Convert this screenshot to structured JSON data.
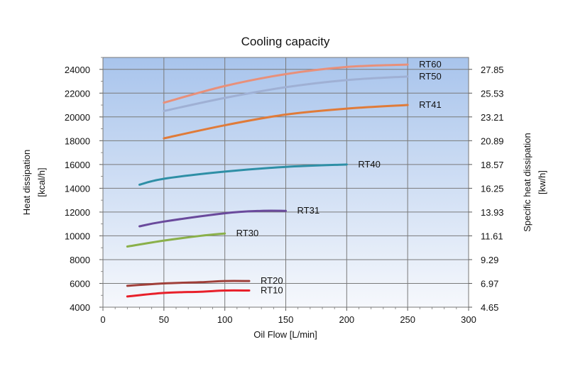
{
  "chart_data": {
    "type": "line",
    "title": "Cooling capacity",
    "xlabel": "Oil Flow [L/min]",
    "ylabel": "Heat dissipation",
    "ylabel_unit": "[kcal/h]",
    "y2label": "Specific heat dissipation",
    "y2label_unit": "[kw/h]",
    "xlim": [
      0,
      300
    ],
    "ylim": [
      4000,
      25000
    ],
    "x_ticks": [
      "0",
      "50",
      "100",
      "150",
      "200",
      "250",
      "300"
    ],
    "y_ticks": [
      "4000",
      "6000",
      "8000",
      "10000",
      "12000",
      "14000",
      "16000",
      "18000",
      "20000",
      "22000",
      "24000"
    ],
    "y2_ticks": [
      "4.65",
      "6.97",
      "9.29",
      "11.61",
      "13.93",
      "16.25",
      "18.57",
      "20.89",
      "23.21",
      "25.53",
      "27.85"
    ],
    "grid": true,
    "background_gradient": [
      "#a8c4ec",
      "#f6f8fc"
    ],
    "series": [
      {
        "name": "RT60",
        "color": "#e8907a",
        "x": [
          50,
          100,
          150,
          200,
          250
        ],
        "y": [
          21200,
          22600,
          23600,
          24200,
          24400
        ]
      },
      {
        "name": "RT50",
        "color": "#9fb0d4",
        "x": [
          50,
          100,
          150,
          200,
          250
        ],
        "y": [
          20500,
          21600,
          22500,
          23100,
          23400
        ]
      },
      {
        "name": "RT41",
        "color": "#e07b39",
        "x": [
          50,
          100,
          150,
          200,
          250
        ],
        "y": [
          18200,
          19300,
          20200,
          20700,
          21000
        ]
      },
      {
        "name": "RT40",
        "color": "#2e8fa6",
        "x": [
          30,
          50,
          100,
          150,
          200
        ],
        "y": [
          14300,
          14800,
          15400,
          15800,
          16000
        ]
      },
      {
        "name": "RT31",
        "color": "#6a4a9c",
        "x": [
          30,
          50,
          100,
          130,
          150
        ],
        "y": [
          10800,
          11200,
          11900,
          12100,
          12100
        ]
      },
      {
        "name": "RT30",
        "color": "#8ab04a",
        "x": [
          20,
          50,
          80,
          100
        ],
        "y": [
          9100,
          9600,
          10000,
          10200
        ]
      },
      {
        "name": "RT20",
        "color": "#a0403a",
        "x": [
          20,
          50,
          80,
          100,
          120
        ],
        "y": [
          5800,
          6000,
          6100,
          6200,
          6200
        ]
      },
      {
        "name": "RT10",
        "color": "#e8202a",
        "x": [
          20,
          50,
          80,
          100,
          120
        ],
        "y": [
          4900,
          5200,
          5300,
          5400,
          5400
        ]
      }
    ]
  }
}
